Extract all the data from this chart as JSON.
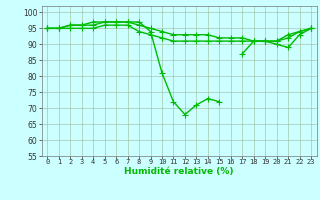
{
  "xlabel": "Humidité relative (%)",
  "x": [
    0,
    1,
    2,
    3,
    4,
    5,
    6,
    7,
    8,
    9,
    10,
    11,
    12,
    13,
    14,
    15,
    16,
    17,
    18,
    19,
    20,
    21,
    22,
    23
  ],
  "line1": [
    95,
    95,
    96,
    96,
    96,
    97,
    97,
    97,
    97,
    94,
    81,
    72,
    68,
    71,
    73,
    72,
    null,
    87,
    91,
    91,
    90,
    89,
    93,
    95
  ],
  "line2": [
    95,
    95,
    95,
    95,
    95,
    96,
    96,
    96,
    94,
    93,
    92,
    91,
    91,
    91,
    91,
    91,
    91,
    91,
    91,
    91,
    91,
    93,
    94,
    95
  ],
  "line3": [
    95,
    95,
    96,
    96,
    97,
    97,
    97,
    97,
    96,
    95,
    94,
    93,
    93,
    93,
    93,
    92,
    92,
    92,
    91,
    91,
    91,
    92,
    94,
    95
  ],
  "bg_color": "#ccffff",
  "grid_color": "#99bb99",
  "line_color": "#00bb00",
  "ylim": [
    55,
    102
  ],
  "yticks": [
    55,
    60,
    65,
    70,
    75,
    80,
    85,
    90,
    95,
    100
  ],
  "xlim": [
    -0.5,
    23.5
  ],
  "marker": "+",
  "markersize": 4,
  "linewidth": 1.0,
  "xlabel_fontsize": 6.5,
  "ytick_fontsize": 5.5,
  "xtick_fontsize": 5.0
}
